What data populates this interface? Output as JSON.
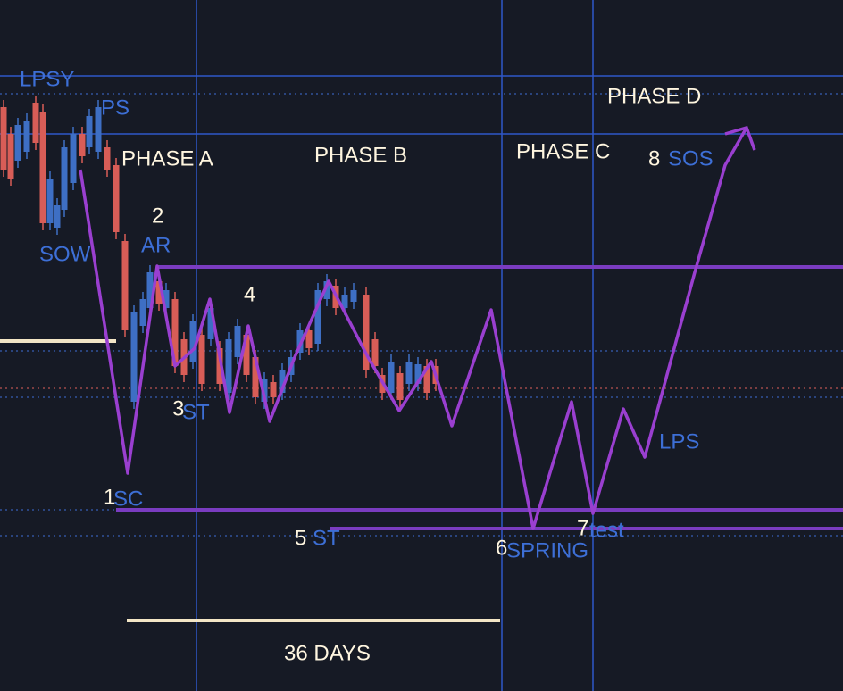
{
  "phases": [
    "PHASE A",
    "PHASE B",
    "PHASE C",
    "PHASE D"
  ],
  "markers": [
    "LPSY",
    "PS",
    "SOW",
    "LPS"
  ],
  "events": [
    {
      "number": "1",
      "label": "SC"
    },
    {
      "number": "2",
      "label": "AR"
    },
    {
      "number": "3",
      "label": "ST"
    },
    {
      "number": "4"
    },
    {
      "number": "5",
      "label": "ST"
    },
    {
      "number": "6",
      "label": "SPRING"
    },
    {
      "number": "7",
      "label": "test"
    },
    {
      "number": "8",
      "label": "SOS"
    }
  ],
  "duration": "36 DAYS"
}
